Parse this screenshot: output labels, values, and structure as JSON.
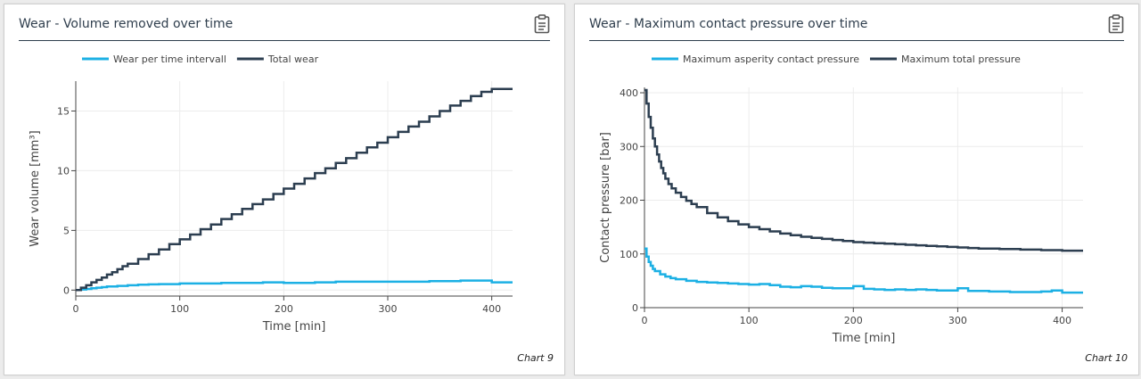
{
  "panels": [
    {
      "title": "Wear - Volume removed over time",
      "caption": "Chart 9",
      "icon": "clipboard-icon"
    },
    {
      "title": "Wear - Maximum contact pressure over time",
      "caption": "Chart 10",
      "icon": "clipboard-icon"
    }
  ],
  "colors": {
    "light_series": "#1cb0e4",
    "dark_series": "#2c3e50",
    "grid": "#ececec",
    "axis": "#444444"
  },
  "chart_data": [
    {
      "type": "line",
      "line_shape": "step",
      "title": "Wear - Volume removed over time",
      "xlabel": "Time [min]",
      "ylabel": "Wear volume [mm³]",
      "xlim": [
        0,
        420
      ],
      "ylim": [
        -0.5,
        17.5
      ],
      "xticks": [
        0,
        100,
        200,
        300,
        400
      ],
      "yticks": [
        0,
        5,
        10,
        15
      ],
      "legend_position": "top-center",
      "series": [
        {
          "name": "Wear per time intervall",
          "color": "#1cb0e4",
          "x": [
            0,
            5,
            10,
            15,
            20,
            25,
            30,
            40,
            50,
            60,
            70,
            80,
            90,
            100,
            120,
            140,
            160,
            180,
            200,
            210,
            230,
            250,
            270,
            280,
            300,
            320,
            340,
            350,
            370,
            380,
            400,
            420
          ],
          "y": [
            0,
            0.05,
            0.1,
            0.15,
            0.2,
            0.25,
            0.3,
            0.35,
            0.4,
            0.45,
            0.48,
            0.5,
            0.5,
            0.55,
            0.55,
            0.6,
            0.6,
            0.65,
            0.6,
            0.6,
            0.65,
            0.7,
            0.7,
            0.7,
            0.7,
            0.7,
            0.75,
            0.75,
            0.8,
            0.8,
            0.65,
            0.65
          ]
        },
        {
          "name": "Total wear",
          "color": "#2c3e50",
          "x": [
            0,
            5,
            10,
            15,
            20,
            25,
            30,
            35,
            40,
            45,
            50,
            60,
            70,
            80,
            90,
            100,
            110,
            120,
            130,
            140,
            150,
            160,
            170,
            180,
            190,
            200,
            210,
            220,
            230,
            240,
            250,
            260,
            270,
            280,
            290,
            300,
            310,
            320,
            330,
            340,
            350,
            360,
            370,
            380,
            390,
            400,
            410,
            420
          ],
          "y": [
            0,
            0.2,
            0.4,
            0.65,
            0.85,
            1.05,
            1.3,
            1.5,
            1.75,
            2.0,
            2.2,
            2.6,
            3.0,
            3.4,
            3.85,
            4.25,
            4.65,
            5.1,
            5.5,
            5.95,
            6.35,
            6.8,
            7.2,
            7.6,
            8.05,
            8.5,
            8.9,
            9.35,
            9.8,
            10.2,
            10.65,
            11.05,
            11.5,
            11.95,
            12.35,
            12.8,
            13.25,
            13.7,
            14.1,
            14.55,
            15.0,
            15.45,
            15.85,
            16.25,
            16.6,
            16.85,
            16.85,
            16.85
          ]
        }
      ]
    },
    {
      "type": "line",
      "line_shape": "step",
      "title": "Wear - Maximum contact pressure over time",
      "xlabel": "Time [min]",
      "ylabel": "Contact pressure [bar]",
      "xlim": [
        0,
        420
      ],
      "ylim": [
        0,
        410
      ],
      "xticks": [
        0,
        100,
        200,
        300,
        400
      ],
      "yticks": [
        0,
        100,
        200,
        300,
        400
      ],
      "legend_position": "top-center",
      "series": [
        {
          "name": "Maximum asperity contact pressure",
          "color": "#1cb0e4",
          "x": [
            0,
            2,
            4,
            6,
            8,
            10,
            15,
            20,
            25,
            30,
            40,
            50,
            60,
            70,
            80,
            90,
            100,
            110,
            120,
            130,
            140,
            150,
            160,
            170,
            180,
            190,
            200,
            210,
            220,
            230,
            240,
            250,
            260,
            270,
            280,
            290,
            300,
            310,
            320,
            330,
            340,
            350,
            360,
            370,
            380,
            390,
            400,
            410,
            420
          ],
          "y": [
            110,
            95,
            85,
            78,
            72,
            68,
            62,
            58,
            55,
            53,
            50,
            48,
            47,
            46,
            45,
            44,
            43,
            44,
            42,
            39,
            38,
            40,
            39,
            37,
            36,
            36,
            40,
            35,
            34,
            33,
            34,
            33,
            34,
            33,
            32,
            32,
            36,
            31,
            31,
            30,
            30,
            29,
            29,
            29,
            30,
            32,
            28,
            28,
            28
          ]
        },
        {
          "name": "Maximum total pressure",
          "color": "#2c3e50",
          "x": [
            0,
            2,
            4,
            6,
            8,
            10,
            12,
            14,
            16,
            18,
            20,
            23,
            26,
            30,
            35,
            40,
            45,
            50,
            60,
            70,
            80,
            90,
            100,
            110,
            120,
            130,
            140,
            150,
            160,
            170,
            180,
            190,
            200,
            210,
            220,
            230,
            240,
            250,
            260,
            270,
            280,
            290,
            300,
            310,
            320,
            330,
            340,
            350,
            360,
            370,
            380,
            390,
            400,
            410,
            420
          ],
          "y": [
            405,
            380,
            355,
            335,
            315,
            300,
            285,
            272,
            260,
            250,
            240,
            230,
            222,
            214,
            206,
            199,
            193,
            187,
            176,
            168,
            161,
            155,
            150,
            146,
            142,
            138,
            135,
            132,
            130,
            128,
            126,
            124,
            122,
            121,
            120,
            119,
            118,
            117,
            116,
            115,
            114,
            113,
            112,
            111,
            110,
            110,
            109,
            109,
            108,
            108,
            107,
            107,
            106,
            106,
            106
          ]
        }
      ]
    }
  ]
}
